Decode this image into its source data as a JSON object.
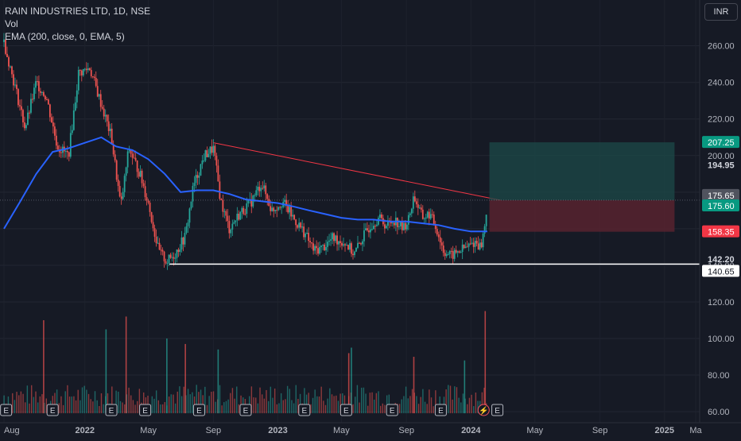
{
  "header": {
    "title": "RAIN INDUSTRIES LTD, 1D, NSE",
    "vol": "Vol",
    "ema": "EMA (200, close, 0, EMA, 5)"
  },
  "currency": "INR",
  "colors": {
    "background": "#161a25",
    "up": "#26a69a",
    "down": "#ef5350",
    "ema": "#2962ff",
    "trendline": "#f23645",
    "profit_zone": "#1c4a48",
    "loss_zone": "#5b2330"
  },
  "chart_data": {
    "type": "candlestick",
    "title": "RAIN INDUSTRIES LTD, 1D, NSE",
    "x_tick_labels": [
      "Aug",
      "2022",
      "May",
      "Sep",
      "2023",
      "May",
      "Sep",
      "2024",
      "May",
      "Sep",
      "2025",
      "Ma"
    ],
    "y_axis": {
      "ticks": [
        260,
        240,
        220,
        200,
        180,
        160,
        140,
        120,
        100,
        80,
        60
      ],
      "tick_labels": [
        "260.00",
        "240.00",
        "220.00",
        "200.00",
        "180.00",
        "160.00",
        "140.00",
        "120.00",
        "100.00",
        "80.00",
        "60.00"
      ],
      "ylim": [
        57,
        282
      ]
    },
    "price_labels": [
      {
        "text": "207.25",
        "value": 207.25,
        "style": "green"
      },
      {
        "text": "194.95",
        "value": 194.95,
        "style": "plain"
      },
      {
        "text": "175.65",
        "value": 175.65,
        "style": "grey"
      },
      {
        "text": "175.60",
        "value": 175.6,
        "style": "green"
      },
      {
        "text": "158.35",
        "value": 158.35,
        "style": "red"
      },
      {
        "text": "142.20",
        "value": 142.2,
        "style": "plain"
      },
      {
        "text": "140.65",
        "value": 140.65,
        "style": "white"
      }
    ],
    "price_path": [
      [
        "2021-08-01",
        262
      ],
      [
        "2021-08-20",
        240
      ],
      [
        "2021-09-10",
        215
      ],
      [
        "2021-10-01",
        240
      ],
      [
        "2021-10-20",
        232
      ],
      [
        "2021-11-10",
        205
      ],
      [
        "2021-12-01",
        200
      ],
      [
        "2021-12-20",
        245
      ],
      [
        "2022-01-10",
        248
      ],
      [
        "2022-02-01",
        228
      ],
      [
        "2022-02-20",
        210
      ],
      [
        "2022-03-10",
        172
      ],
      [
        "2022-03-25",
        204
      ],
      [
        "2022-04-15",
        190
      ],
      [
        "2022-05-01",
        174
      ],
      [
        "2022-05-20",
        148
      ],
      [
        "2022-06-05",
        142
      ],
      [
        "2022-06-20",
        146
      ],
      [
        "2022-07-10",
        156
      ],
      [
        "2022-07-25",
        183
      ],
      [
        "2022-08-15",
        200
      ],
      [
        "2022-09-01",
        204
      ],
      [
        "2022-09-15",
        175
      ],
      [
        "2022-10-01",
        160
      ],
      [
        "2022-10-20",
        168
      ],
      [
        "2022-11-10",
        174
      ],
      [
        "2022-12-01",
        185
      ],
      [
        "2022-12-20",
        170
      ],
      [
        "2023-01-10",
        175
      ],
      [
        "2023-02-01",
        165
      ],
      [
        "2023-02-20",
        158
      ],
      [
        "2023-03-10",
        148
      ],
      [
        "2023-03-28",
        150
      ],
      [
        "2023-04-15",
        155
      ],
      [
        "2023-05-10",
        152
      ],
      [
        "2023-05-25",
        146
      ],
      [
        "2023-06-10",
        155
      ],
      [
        "2023-06-25",
        162
      ],
      [
        "2023-07-10",
        166
      ],
      [
        "2023-07-25",
        162
      ],
      [
        "2023-08-10",
        165
      ],
      [
        "2023-08-25",
        160
      ],
      [
        "2023-09-05",
        165
      ],
      [
        "2023-09-15",
        178
      ],
      [
        "2023-10-01",
        166
      ],
      [
        "2023-10-15",
        168
      ],
      [
        "2023-10-28",
        160
      ],
      [
        "2023-11-10",
        148
      ],
      [
        "2023-11-25",
        145
      ],
      [
        "2023-12-10",
        148
      ],
      [
        "2023-12-25",
        150
      ],
      [
        "2024-01-10",
        153
      ],
      [
        "2024-01-20",
        150
      ],
      [
        "2024-01-28",
        163
      ],
      [
        "2024-02-01",
        175.6
      ]
    ],
    "ema_200": [
      [
        "2021-08-01",
        160
      ],
      [
        "2021-09-01",
        175
      ],
      [
        "2021-10-01",
        190
      ],
      [
        "2021-11-01",
        202
      ],
      [
        "2021-12-01",
        204
      ],
      [
        "2022-01-01",
        207
      ],
      [
        "2022-02-01",
        210
      ],
      [
        "2022-03-01",
        205
      ],
      [
        "2022-04-01",
        203
      ],
      [
        "2022-05-01",
        198
      ],
      [
        "2022-06-01",
        190
      ],
      [
        "2022-07-01",
        180
      ],
      [
        "2022-08-01",
        181
      ],
      [
        "2022-09-01",
        181
      ],
      [
        "2022-10-01",
        179
      ],
      [
        "2022-11-01",
        176
      ],
      [
        "2022-12-01",
        175
      ],
      [
        "2023-01-01",
        174
      ],
      [
        "2023-02-01",
        172
      ],
      [
        "2023-03-01",
        170
      ],
      [
        "2023-04-01",
        168
      ],
      [
        "2023-05-01",
        166
      ],
      [
        "2023-06-01",
        165
      ],
      [
        "2023-07-01",
        165
      ],
      [
        "2023-08-01",
        164
      ],
      [
        "2023-09-01",
        164
      ],
      [
        "2023-10-01",
        163
      ],
      [
        "2023-11-01",
        162
      ],
      [
        "2023-12-01",
        160
      ],
      [
        "2024-01-01",
        158.5
      ],
      [
        "2024-02-01",
        158.5
      ]
    ],
    "trendline": {
      "from": [
        "2022-09-01",
        207
      ],
      "to": [
        "2024-02-05",
        175.6
      ]
    },
    "support_line": {
      "from": [
        "2022-06-10",
        140.65
      ],
      "to_right_edge": true,
      "value": 140.65
    },
    "position": {
      "start": "2024-02-05",
      "end": "2025-01-20",
      "entry": 175.6,
      "target": 207.25,
      "stop": 158.35
    },
    "volume_bars": [
      [
        "2021-10-15",
        110
      ],
      [
        "2022-02-10",
        105
      ],
      [
        "2022-03-20",
        112
      ],
      [
        "2022-06-05",
        100
      ],
      [
        "2022-07-10",
        97
      ],
      [
        "2022-09-10",
        94
      ],
      [
        "2023-05-15",
        92
      ],
      [
        "2023-05-20",
        95
      ],
      [
        "2023-09-15",
        90
      ],
      [
        "2023-12-20",
        88
      ],
      [
        "2024-01-28",
        115
      ]
    ],
    "event_markers": [
      [
        "2021-08-05",
        "E"
      ],
      [
        "2021-11-01",
        "E"
      ],
      [
        "2022-02-20",
        "E"
      ],
      [
        "2022-04-25",
        "E"
      ],
      [
        "2022-08-05",
        "E"
      ],
      [
        "2022-11-01",
        "E"
      ],
      [
        "2023-02-20",
        "E"
      ],
      [
        "2023-05-10",
        "E"
      ],
      [
        "2023-08-05",
        "E"
      ],
      [
        "2023-11-05",
        "E"
      ],
      [
        "2024-01-25",
        "⚡"
      ],
      [
        "2024-02-20",
        "E"
      ]
    ]
  }
}
